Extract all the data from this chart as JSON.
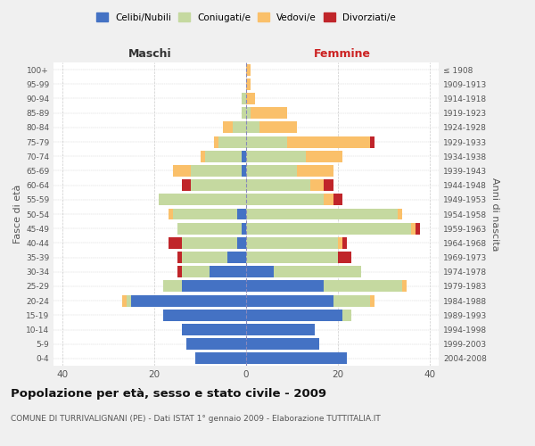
{
  "age_groups": [
    "0-4",
    "5-9",
    "10-14",
    "15-19",
    "20-24",
    "25-29",
    "30-34",
    "35-39",
    "40-44",
    "45-49",
    "50-54",
    "55-59",
    "60-64",
    "65-69",
    "70-74",
    "75-79",
    "80-84",
    "85-89",
    "90-94",
    "95-99",
    "100+"
  ],
  "birth_years": [
    "2004-2008",
    "1999-2003",
    "1994-1998",
    "1989-1993",
    "1984-1988",
    "1979-1983",
    "1974-1978",
    "1969-1973",
    "1964-1968",
    "1959-1963",
    "1954-1958",
    "1949-1953",
    "1944-1948",
    "1939-1943",
    "1934-1938",
    "1929-1933",
    "1924-1928",
    "1919-1923",
    "1914-1918",
    "1909-1913",
    "≤ 1908"
  ],
  "male_celibi": [
    11,
    13,
    14,
    18,
    25,
    14,
    8,
    4,
    2,
    1,
    2,
    0,
    0,
    1,
    1,
    0,
    0,
    0,
    0,
    0,
    0
  ],
  "male_coniugati": [
    0,
    0,
    0,
    0,
    1,
    4,
    6,
    10,
    12,
    14,
    14,
    19,
    12,
    11,
    8,
    6,
    3,
    1,
    1,
    0,
    0
  ],
  "male_vedovi": [
    0,
    0,
    0,
    0,
    1,
    0,
    0,
    0,
    0,
    0,
    1,
    0,
    0,
    4,
    1,
    1,
    2,
    0,
    0,
    0,
    0
  ],
  "male_divorziati": [
    0,
    0,
    0,
    0,
    0,
    0,
    1,
    1,
    3,
    0,
    0,
    0,
    2,
    0,
    0,
    0,
    0,
    0,
    0,
    0,
    0
  ],
  "female_celibi": [
    22,
    16,
    15,
    21,
    19,
    17,
    6,
    0,
    0,
    0,
    0,
    0,
    0,
    0,
    0,
    0,
    0,
    0,
    0,
    0,
    0
  ],
  "female_coniugati": [
    0,
    0,
    0,
    2,
    8,
    17,
    19,
    20,
    20,
    36,
    33,
    17,
    14,
    11,
    13,
    9,
    3,
    1,
    0,
    0,
    0
  ],
  "female_vedovi": [
    0,
    0,
    0,
    0,
    1,
    1,
    0,
    0,
    1,
    1,
    1,
    2,
    3,
    8,
    8,
    18,
    8,
    8,
    2,
    1,
    1
  ],
  "female_divorziati": [
    0,
    0,
    0,
    0,
    0,
    0,
    0,
    3,
    1,
    1,
    0,
    2,
    2,
    0,
    0,
    1,
    0,
    0,
    0,
    0,
    0
  ],
  "color_celibi": "#4472c4",
  "color_coniugati": "#c5d9a0",
  "color_vedovi": "#fac06a",
  "color_divorziati": "#c0252a",
  "title": "Popolazione per età, sesso e stato civile - 2009",
  "subtitle": "COMUNE DI TURRIVALIGNANI (PE) - Dati ISTAT 1° gennaio 2009 - Elaborazione TUTTITALIA.IT",
  "xlabel_left": "Maschi",
  "xlabel_right": "Femmine",
  "ylabel_left": "Fasce di età",
  "ylabel_right": "Anni di nascita",
  "xlim": 42,
  "bg_color": "#f0f0f0",
  "plot_bg": "#ffffff",
  "grid_color": "#cccccc"
}
